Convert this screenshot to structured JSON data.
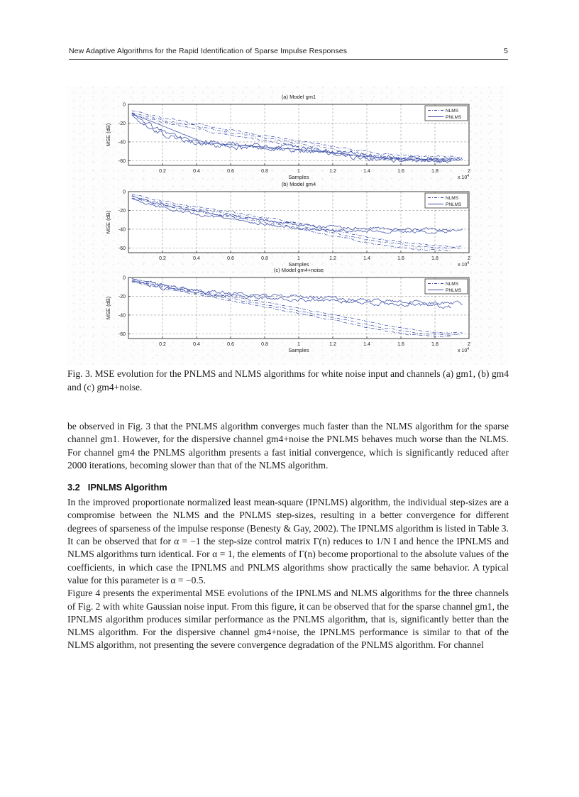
{
  "page": {
    "header_title": "New Adaptive Algorithms for the Rapid Identification of Sparse Impulse Responses",
    "page_number": "5"
  },
  "figure": {
    "caption": "Fig. 3. MSE evolution for the PNLMS and NLMS algorithms for white noise input and channels (a) gm1, (b) gm4 and (c) gm4+noise."
  },
  "body": {
    "para1": "be observed in Fig. 3 that the PNLMS algorithm converges much faster than the NLMS algorithm for the sparse channel gm1. However, for the dispersive channel gm4+noise the PNLMS behaves much worse than the NLMS. For channel gm4 the PNLMS algorithm presents a fast initial convergence, which is significantly reduced after 2000 iterations, becoming slower than that of the NLMS algorithm.",
    "section": {
      "number": "3.2",
      "title": "IPNLMS Algorithm"
    },
    "para2": "In the improved proportionate normalized least mean-square (IPNLMS) algorithm, the individual step-sizes are a compromise between the NLMS and the PNLMS step-sizes, resulting in a better convergence for different degrees of sparseness of the impulse response (Benesty & Gay, 2002).  The IPNLMS algorithm is listed in Table 3.  It can be observed that for α = −1 the step-size control matrix Γ(n) reduces to 1/N I and hence the IPNLMS and NLMS algorithms turn identical.  For α = 1, the elements of Γ(n) become proportional to the absolute values of the coefficients, in which case the IPNLMS and PNLMS algorithms show practically the same behavior.  A typical value for this parameter is α = −0.5.",
    "para3": "Figure 4 presents the experimental MSE evolutions of the IPNLMS and NLMS algorithms for the three channels of Fig. 2 with white Gaussian noise input.  From this figure, it can be observed that for the sparse channel gm1, the IPNLMS algorithm produces similar performance as the PNLMS algorithm, that is, significantly better than the NLMS algorithm. For the dispersive channel gm4+noise, the IPNLMS performance is similar to that of the NLMS algorithm, not presenting the severe convergence degradation of the PNLMS algorithm.  For channel"
  },
  "colors": {
    "curve": "#3a4da6",
    "grid": "#8a8a8a",
    "axis": "#2b2b2b",
    "text": "#222222"
  },
  "chart_data": [
    {
      "type": "line",
      "title": "(a) Model gm1",
      "xlabel": "Samples",
      "ylabel": "MSE (dB)",
      "x_scale_base": "x 10",
      "x_scale_exp": "4",
      "xlim": [
        0,
        2
      ],
      "ylim": [
        -65,
        0
      ],
      "grid": true,
      "legend_position": "top-right",
      "legend": [
        "NLMS",
        "PNLMS"
      ],
      "legend_styles": [
        "dashdot",
        "solid"
      ],
      "xtick_values": [
        0.2,
        0.4,
        0.6,
        0.8,
        1,
        1.2,
        1.4,
        1.6,
        1.8,
        2
      ],
      "xtick_labels": [
        "0.2",
        "0.4",
        "0.6",
        "0.8",
        "1",
        "1.2",
        "1.4",
        "1.6",
        "1.8",
        "2"
      ],
      "ytick_values": [
        0,
        -20,
        -40,
        -60
      ],
      "ytick_labels": [
        "0",
        "-20",
        "-40",
        "-60"
      ],
      "series": [
        {
          "name": "NLMS",
          "style": "dashdot",
          "strands": 3,
          "spread": 2.2,
          "noise": 0.9,
          "points": [
            [
              0.02,
              -9
            ],
            [
              0.1,
              -12.5
            ],
            [
              0.2,
              -16.5
            ],
            [
              0.3,
              -20
            ],
            [
              0.4,
              -23.5
            ],
            [
              0.5,
              -27
            ],
            [
              0.6,
              -30
            ],
            [
              0.7,
              -33
            ],
            [
              0.8,
              -36
            ],
            [
              0.9,
              -39
            ],
            [
              1.0,
              -42
            ],
            [
              1.1,
              -45
            ],
            [
              1.2,
              -48
            ],
            [
              1.3,
              -51
            ],
            [
              1.4,
              -53.5
            ],
            [
              1.5,
              -55.5
            ],
            [
              1.6,
              -56.5
            ],
            [
              1.7,
              -57.5
            ],
            [
              1.8,
              -58
            ],
            [
              1.95,
              -58.5
            ]
          ]
        },
        {
          "name": "PNLMS",
          "style": "solid",
          "strands": 2,
          "spread": 1.2,
          "noise": 2.2,
          "points": [
            [
              0.02,
              -10
            ],
            [
              0.06,
              -16
            ],
            [
              0.1,
              -21
            ],
            [
              0.15,
              -26
            ],
            [
              0.2,
              -30
            ],
            [
              0.25,
              -33
            ],
            [
              0.3,
              -35.5
            ],
            [
              0.35,
              -38
            ],
            [
              0.4,
              -40
            ],
            [
              0.5,
              -42
            ],
            [
              0.6,
              -43.5
            ],
            [
              0.7,
              -44.5
            ],
            [
              0.8,
              -45.5
            ],
            [
              0.9,
              -46.5
            ],
            [
              1.0,
              -48
            ],
            [
              1.1,
              -49.5
            ],
            [
              1.2,
              -51.5
            ],
            [
              1.3,
              -54
            ],
            [
              1.4,
              -56
            ],
            [
              1.5,
              -57.5
            ],
            [
              1.6,
              -58.5
            ],
            [
              1.8,
              -59.5
            ],
            [
              1.95,
              -60
            ]
          ]
        },
        {
          "name": "PNLMS",
          "style": "solid",
          "strands": 1,
          "spread": 0,
          "noise": 0.25,
          "points": [
            [
              0.02,
              -10
            ],
            [
              0.45,
              -41
            ],
            [
              0.6,
              -43
            ],
            [
              0.8,
              -45.5
            ],
            [
              1.0,
              -48
            ],
            [
              1.2,
              -51.5
            ],
            [
              1.4,
              -55.5
            ],
            [
              1.6,
              -58
            ],
            [
              1.95,
              -59.5
            ]
          ]
        }
      ]
    },
    {
      "type": "line",
      "title": "(b) Model gm4",
      "xlabel": "Samples",
      "ylabel": "MSE (dB)",
      "x_scale_base": "x 10",
      "x_scale_exp": "4",
      "xlim": [
        0,
        2
      ],
      "ylim": [
        -65,
        0
      ],
      "grid": true,
      "legend_position": "top-right",
      "legend": [
        "NLMS",
        "PNLMS"
      ],
      "legend_styles": [
        "dashdot",
        "solid"
      ],
      "xtick_values": [
        0.2,
        0.4,
        0.6,
        0.8,
        1,
        1.2,
        1.4,
        1.6,
        1.8,
        2
      ],
      "xtick_labels": [
        "0.2",
        "0.4",
        "0.6",
        "0.8",
        "1",
        "1.2",
        "1.4",
        "1.6",
        "1.8",
        "2"
      ],
      "ytick_values": [
        0,
        -20,
        -40,
        -60
      ],
      "ytick_labels": [
        "0",
        "-20",
        "-40",
        "-60"
      ],
      "series": [
        {
          "name": "NLMS",
          "style": "dashdot",
          "strands": 3,
          "spread": 2.0,
          "noise": 0.8,
          "points": [
            [
              0.02,
              -5
            ],
            [
              0.2,
              -12
            ],
            [
              0.4,
              -18.5
            ],
            [
              0.6,
              -24.5
            ],
            [
              0.8,
              -30
            ],
            [
              0.9,
              -33
            ],
            [
              1.0,
              -36
            ],
            [
              1.1,
              -40
            ],
            [
              1.2,
              -44
            ],
            [
              1.3,
              -47.5
            ],
            [
              1.4,
              -51
            ],
            [
              1.5,
              -54
            ],
            [
              1.6,
              -56.5
            ],
            [
              1.7,
              -58.5
            ],
            [
              1.8,
              -60
            ],
            [
              1.95,
              -60.5
            ]
          ]
        },
        {
          "name": "PNLMS",
          "style": "solid",
          "strands": 2,
          "spread": 1.5,
          "noise": 1.4,
          "points": [
            [
              0.02,
              -5.5
            ],
            [
              0.05,
              -8
            ],
            [
              0.1,
              -11
            ],
            [
              0.15,
              -13.5
            ],
            [
              0.2,
              -15.5
            ],
            [
              0.3,
              -19
            ],
            [
              0.4,
              -22
            ],
            [
              0.5,
              -25
            ],
            [
              0.6,
              -27.5
            ],
            [
              0.7,
              -30
            ],
            [
              0.8,
              -32.5
            ],
            [
              0.9,
              -35
            ],
            [
              1.0,
              -37
            ],
            [
              1.1,
              -38.5
            ],
            [
              1.2,
              -39.5
            ],
            [
              1.35,
              -40.5
            ],
            [
              1.5,
              -41
            ],
            [
              1.7,
              -41.5
            ],
            [
              1.95,
              -42
            ]
          ]
        }
      ]
    },
    {
      "type": "line",
      "title": "(c) Model gm4+noise",
      "xlabel": "Samples",
      "ylabel": "MSE (dB)",
      "x_scale_base": "x 10",
      "x_scale_exp": "4",
      "xlim": [
        0,
        2
      ],
      "ylim": [
        -65,
        0
      ],
      "grid": true,
      "legend_position": "top-right",
      "legend": [
        "NLMS",
        "PNLMS"
      ],
      "legend_styles": [
        "dashdot",
        "solid"
      ],
      "xtick_values": [
        0.2,
        0.4,
        0.6,
        0.8,
        1,
        1.2,
        1.4,
        1.6,
        1.8,
        2
      ],
      "xtick_labels": [
        "0.2",
        "0.4",
        "0.6",
        "0.8",
        "1",
        "1.2",
        "1.4",
        "1.6",
        "1.8",
        "2"
      ],
      "ytick_values": [
        0,
        -20,
        -40,
        -60
      ],
      "ytick_labels": [
        "0",
        "-20",
        "-40",
        "-60"
      ],
      "series": [
        {
          "name": "NLMS",
          "style": "dashdot",
          "strands": 3,
          "spread": 1.8,
          "noise": 0.5,
          "points": [
            [
              0.02,
              -3
            ],
            [
              0.2,
              -9.5
            ],
            [
              0.4,
              -16
            ],
            [
              0.6,
              -22.5
            ],
            [
              0.8,
              -29
            ],
            [
              1.0,
              -35.5
            ],
            [
              1.1,
              -39
            ],
            [
              1.2,
              -42.5
            ],
            [
              1.3,
              -46
            ],
            [
              1.4,
              -50
            ],
            [
              1.5,
              -53.5
            ],
            [
              1.6,
              -56.5
            ],
            [
              1.7,
              -59
            ],
            [
              1.8,
              -60.5
            ],
            [
              1.95,
              -61
            ]
          ]
        },
        {
          "name": "PNLMS",
          "style": "solid",
          "strands": 2,
          "spread": 1.3,
          "noise": 1.8,
          "points": [
            [
              0.02,
              -2.5
            ],
            [
              0.1,
              -6
            ],
            [
              0.2,
              -9.5
            ],
            [
              0.3,
              -12.5
            ],
            [
              0.4,
              -15
            ],
            [
              0.5,
              -17
            ],
            [
              0.6,
              -18.5
            ],
            [
              0.7,
              -19.5
            ],
            [
              0.8,
              -20.5
            ],
            [
              1.0,
              -22
            ],
            [
              1.2,
              -23.5
            ],
            [
              1.4,
              -25.5
            ],
            [
              1.6,
              -27
            ],
            [
              1.8,
              -28.5
            ],
            [
              1.95,
              -29.5
            ]
          ]
        }
      ]
    }
  ]
}
